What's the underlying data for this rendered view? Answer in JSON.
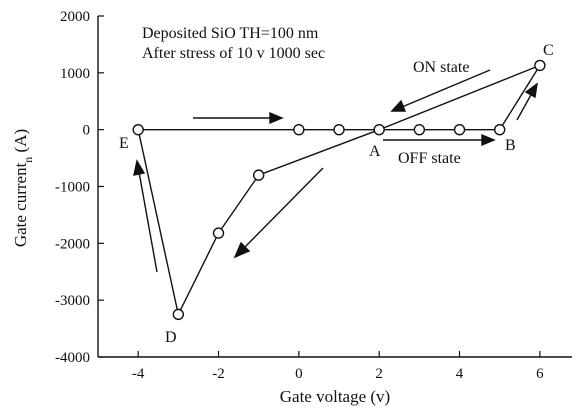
{
  "chart_data": {
    "type": "line",
    "xlabel": "Gate voltage (v)",
    "ylabel": "Gate current (A)",
    "ylabel_subscript": "n",
    "xlim": [
      -5,
      6.8
    ],
    "ylim": [
      -4000,
      2000
    ],
    "xticks": [
      -4,
      -2,
      0,
      2,
      4,
      6
    ],
    "yticks": [
      2000,
      1000,
      0,
      -1000,
      -2000,
      -3000,
      -4000
    ],
    "grid": false,
    "series": [
      {
        "x": [
          -4,
          -3,
          2,
          3,
          4,
          5,
          6
        ],
        "y": [
          0,
          0,
          0,
          0,
          0,
          0,
          0
        ]
      }
    ],
    "curve": [
      {
        "x": -4,
        "y": 0,
        "marker": false
      },
      {
        "x": 0,
        "y": 0,
        "marker": true
      },
      {
        "x": 1,
        "y": 0,
        "marker": true
      },
      {
        "x": 2,
        "y": 0,
        "marker": true
      },
      {
        "x": 3,
        "y": 0,
        "marker": true
      },
      {
        "x": 4,
        "y": 0,
        "marker": true
      },
      {
        "x": 5,
        "y": 0,
        "marker": true
      },
      {
        "x": 6,
        "y": 1130,
        "marker": true
      },
      {
        "x": 2,
        "y": 0,
        "marker": false
      },
      {
        "x": -1,
        "y": -800,
        "marker": true
      },
      {
        "x": -2,
        "y": -1820,
        "marker": true
      },
      {
        "x": -3,
        "y": -3250,
        "marker": true
      },
      {
        "x": -4,
        "y": 0,
        "marker": true
      }
    ],
    "annotations": [
      "Deposited SiO TH=100 nm",
      "After stress of 10 v 1000 sec",
      "ON state",
      "OFF state"
    ],
    "point_labels": [
      {
        "text": "A",
        "x": 2,
        "y": 0
      },
      {
        "text": "B",
        "x": 5,
        "y": 0
      },
      {
        "text": "C",
        "x": 6,
        "y": 1130
      },
      {
        "text": "D",
        "x": -3,
        "y": -3250
      },
      {
        "text": "E",
        "x": -4,
        "y": 0
      }
    ]
  }
}
